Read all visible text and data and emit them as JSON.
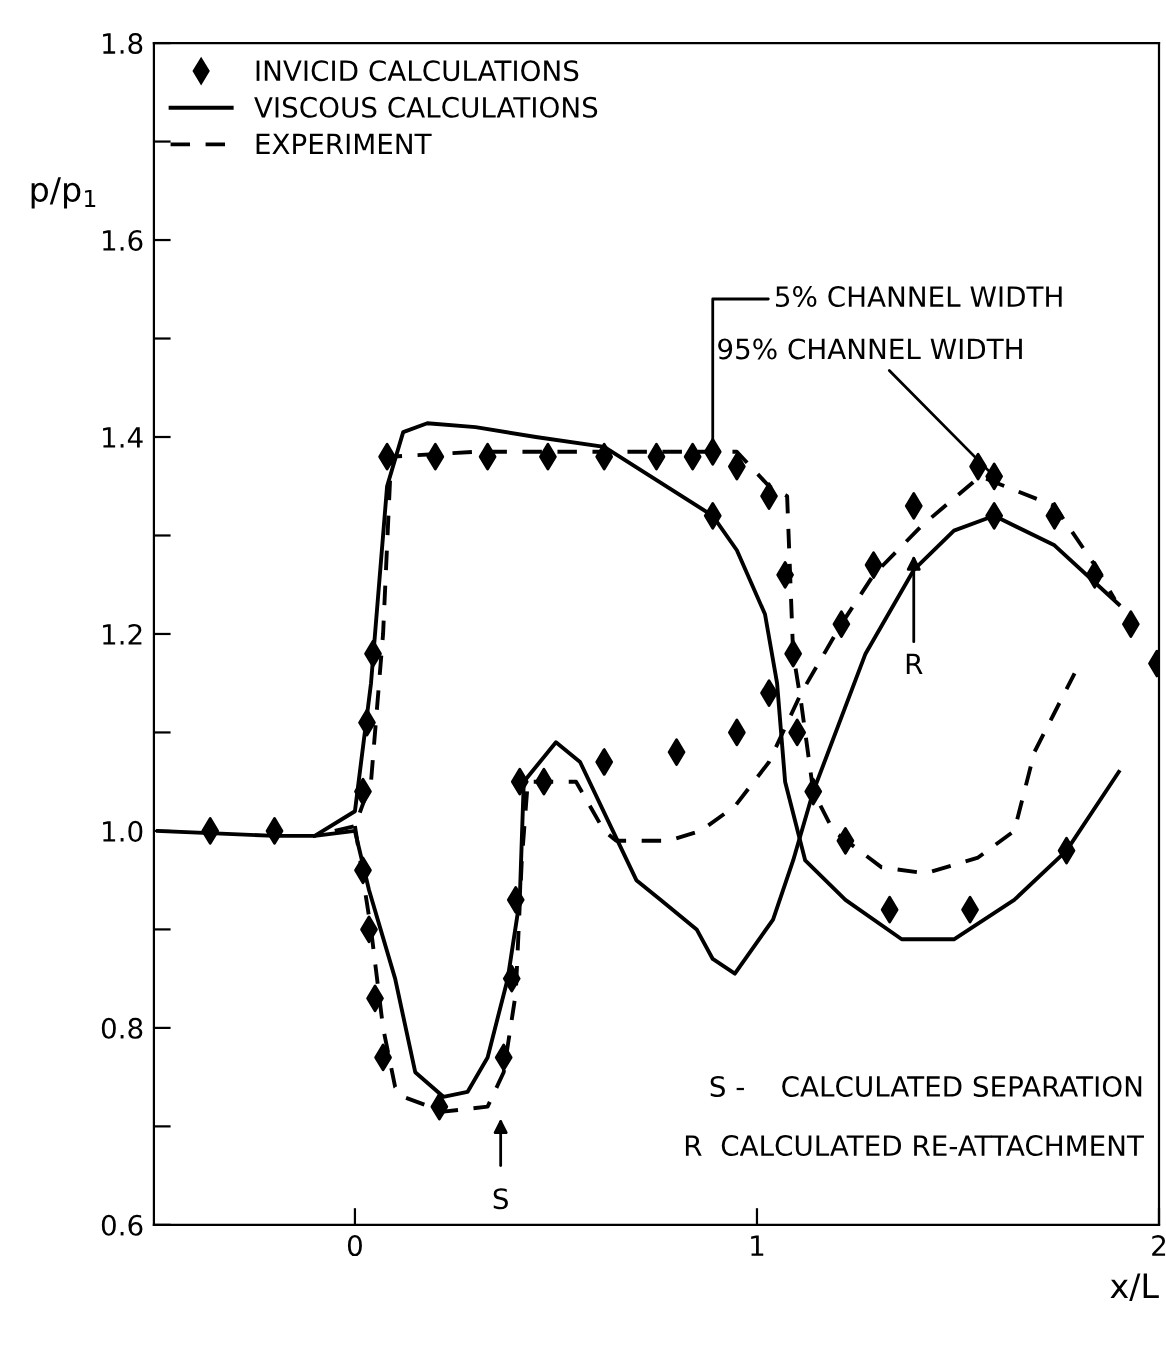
{
  "chart_data": {
    "type": "line",
    "xlabel": "x/L",
    "ylabel": "p/p$_{1}$",
    "xlim": [
      -0.5,
      2.0
    ],
    "xticks": [
      0,
      1,
      2
    ],
    "ylim": [
      0.6,
      1.8
    ],
    "yticks": [
      0.6,
      {
        "value": 0.7,
        "label": null
      },
      0.8,
      {
        "value": 0.9,
        "label": null
      },
      {
        "value": 1.0,
        "label": "1.0"
      },
      {
        "value": 1.1,
        "label": null
      },
      1.2,
      {
        "value": 1.3,
        "label": null
      },
      1.4,
      {
        "value": 1.5,
        "label": null
      },
      1.6,
      {
        "value": 1.7,
        "label": null
      },
      1.8
    ],
    "grid": false,
    "legend": "top left",
    "series": [
      {
        "name": "INVICID CALCULATIONS",
        "type": "scatter",
        "marker": "diamond",
        "color": "#000000",
        "x": [
          -0.36,
          -0.2,
          0.02,
          0.03,
          0.045,
          0.08,
          0.2,
          0.33,
          0.48,
          0.62,
          0.75,
          0.84,
          0.89,
          0.95,
          1.03,
          1.07,
          1.09,
          1.1,
          1.14,
          1.22,
          1.33,
          1.53,
          1.77,
          0.02,
          0.035,
          0.05,
          0.07,
          0.21,
          0.37,
          0.39,
          0.4,
          0.41,
          0.47,
          0.62,
          0.8,
          0.95,
          1.03,
          0.89,
          1.21,
          1.29,
          1.39,
          1.55,
          1.59,
          1.59,
          1.74,
          1.84,
          1.93,
          1.995
        ],
        "values": [
          1.0,
          1.0,
          1.04,
          1.11,
          1.18,
          1.38,
          1.38,
          1.38,
          1.38,
          1.38,
          1.38,
          1.38,
          1.385,
          1.37,
          1.34,
          1.26,
          1.18,
          1.1,
          1.04,
          0.99,
          0.92,
          0.92,
          0.98,
          0.96,
          0.9,
          0.83,
          0.77,
          0.72,
          0.77,
          0.85,
          0.93,
          1.05,
          1.05,
          1.07,
          1.08,
          1.1,
          1.14,
          1.32,
          1.21,
          1.27,
          1.33,
          1.37,
          1.36,
          1.32,
          1.32,
          1.26,
          1.21,
          1.17
        ]
      },
      {
        "name": "VISCOUS CALCULATIONS",
        "line_style": "solid",
        "color": "#000000",
        "x": [
          -0.49,
          -0.2,
          -0.1,
          0.0,
          0.04,
          0.08,
          0.12,
          0.18,
          0.3,
          0.45,
          0.62,
          0.89,
          0.95,
          1.02,
          1.05,
          1.07,
          1.12,
          1.22,
          1.36,
          1.49,
          1.64,
          1.77,
          1.9
        ],
        "values": [
          1.0,
          0.995,
          0.995,
          1.02,
          1.15,
          1.35,
          1.405,
          1.414,
          1.41,
          1.4,
          1.39,
          1.32,
          1.285,
          1.22,
          1.15,
          1.05,
          0.97,
          0.93,
          0.89,
          0.89,
          0.93,
          0.98,
          1.06
        ]
      },
      {
        "line_style": "solid",
        "color": "#000000",
        "x": [
          -0.1,
          0.0,
          0.035,
          0.1,
          0.15,
          0.22,
          0.28,
          0.33,
          0.38,
          0.41,
          0.42,
          0.5,
          0.56,
          0.63,
          0.7,
          0.76,
          0.85,
          0.89,
          0.945,
          1.04,
          1.09,
          1.14,
          1.27,
          1.39,
          1.49,
          1.59,
          1.74,
          1.9
        ],
        "values": [
          0.995,
          1.0,
          0.94,
          0.85,
          0.755,
          0.73,
          0.735,
          0.77,
          0.85,
          0.93,
          1.05,
          1.09,
          1.07,
          1.01,
          0.95,
          0.93,
          0.9,
          0.87,
          0.855,
          0.91,
          0.97,
          1.04,
          1.18,
          1.265,
          1.305,
          1.32,
          1.29,
          1.23
        ]
      },
      {
        "name": "EXPERIMENT",
        "line_style": "dashed",
        "color": "#000000",
        "x": [
          -0.05,
          0.0,
          0.04,
          0.07,
          0.09,
          0.3,
          0.6,
          0.95,
          1.03,
          1.075,
          1.09,
          1.11,
          1.14,
          1.19,
          1.31,
          1.42,
          1.55,
          1.64,
          1.69,
          1.79
        ],
        "values": [
          1.0,
          1.005,
          1.05,
          1.2,
          1.38,
          1.385,
          1.385,
          1.385,
          1.35,
          1.34,
          1.18,
          1.13,
          1.04,
          1.0,
          0.963,
          0.957,
          0.973,
          1.0,
          1.08,
          1.16
        ]
      },
      {
        "line_style": "dashed",
        "color": "#000000",
        "x": [
          0.0,
          0.04,
          0.07,
          0.1,
          0.12,
          0.22,
          0.33,
          0.37,
          0.4,
          0.415,
          0.43,
          0.55,
          0.62,
          0.65,
          0.78,
          0.86,
          0.945,
          1.03,
          1.11,
          1.21,
          1.29,
          1.41,
          1.555,
          1.74,
          1.84,
          1.89
        ],
        "values": [
          1.005,
          0.9,
          0.8,
          0.74,
          0.73,
          0.715,
          0.72,
          0.755,
          0.835,
          0.97,
          1.05,
          1.05,
          1.0,
          0.99,
          0.99,
          1.0,
          1.025,
          1.07,
          1.14,
          1.21,
          1.26,
          1.31,
          1.36,
          1.33,
          1.27,
          1.235
        ]
      }
    ],
    "annotations": [
      {
        "text": "5% CHANNEL WIDTH",
        "x": 0.89,
        "y": 1.385
      },
      {
        "text": "95% CHANNEL WIDTH",
        "x": 1.59,
        "y": 1.36
      },
      "S",
      {
        "text": "R",
        "x": 1.39,
        "y": 1.28
      },
      "S -    CALCULATED SEPARATION",
      "R  CALCULATED RE-ATTACHMENT"
    ]
  }
}
